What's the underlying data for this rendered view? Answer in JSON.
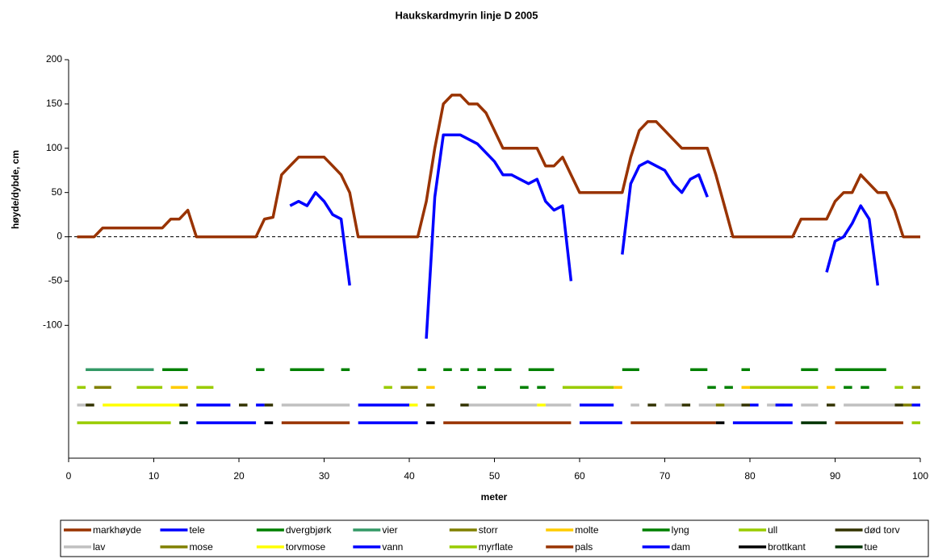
{
  "chart_data": {
    "type": "line",
    "title": "Haukskardmyrin linje D 2005",
    "x_label": "meter",
    "y_label": "høyde/dybde, cm",
    "xlim": [
      0,
      100
    ],
    "xticks": [
      0,
      10,
      20,
      30,
      40,
      50,
      60,
      70,
      80,
      90,
      100
    ],
    "ylim": [
      -250,
      200
    ],
    "yticks": [
      -100,
      -50,
      0,
      50,
      100,
      150,
      200
    ],
    "hline": 0,
    "x": [
      1,
      2,
      3,
      4,
      5,
      6,
      7,
      8,
      9,
      10,
      11,
      12,
      13,
      14,
      15,
      16,
      17,
      18,
      19,
      20,
      21,
      22,
      23,
      24,
      25,
      26,
      27,
      28,
      29,
      30,
      31,
      32,
      33,
      34,
      35,
      36,
      37,
      38,
      39,
      40,
      41,
      42,
      43,
      44,
      45,
      46,
      47,
      48,
      49,
      50,
      51,
      52,
      53,
      54,
      55,
      56,
      57,
      58,
      59,
      60,
      61,
      62,
      63,
      64,
      65,
      66,
      67,
      68,
      69,
      70,
      71,
      72,
      73,
      74,
      75,
      76,
      77,
      78,
      79,
      80,
      81,
      82,
      83,
      84,
      85,
      86,
      87,
      88,
      89,
      90,
      91,
      92,
      93,
      94,
      95,
      96,
      97,
      98,
      99,
      100
    ],
    "series": [
      {
        "name": "markhøyde",
        "color": "#993300",
        "values": [
          0,
          0,
          0,
          10,
          10,
          10,
          10,
          10,
          10,
          10,
          10,
          20,
          20,
          30,
          0,
          0,
          0,
          0,
          0,
          0,
          0,
          0,
          20,
          22,
          70,
          80,
          90,
          90,
          90,
          90,
          80,
          70,
          50,
          0,
          0,
          0,
          0,
          0,
          0,
          0,
          0,
          40,
          100,
          150,
          160,
          160,
          150,
          150,
          140,
          120,
          100,
          100,
          100,
          100,
          100,
          80,
          80,
          90,
          70,
          50,
          50,
          50,
          50,
          50,
          50,
          90,
          120,
          130,
          130,
          120,
          110,
          100,
          100,
          100,
          100,
          70,
          35,
          0,
          0,
          0,
          0,
          0,
          0,
          0,
          0,
          20,
          20,
          20,
          20,
          40,
          50,
          50,
          70,
          60,
          50,
          50,
          30,
          0,
          0,
          0
        ]
      },
      {
        "name": "tele",
        "color": "#0000FF",
        "values": [
          null,
          null,
          null,
          null,
          null,
          null,
          null,
          null,
          null,
          null,
          null,
          null,
          null,
          null,
          null,
          null,
          null,
          null,
          null,
          null,
          null,
          null,
          null,
          null,
          null,
          35,
          40,
          35,
          50,
          40,
          25,
          20,
          -55,
          null,
          null,
          null,
          null,
          null,
          null,
          null,
          null,
          -115,
          45,
          115,
          115,
          115,
          110,
          105,
          95,
          85,
          70,
          70,
          65,
          60,
          65,
          40,
          30,
          35,
          -50,
          null,
          null,
          null,
          null,
          null,
          -20,
          60,
          80,
          85,
          80,
          75,
          60,
          50,
          65,
          70,
          45,
          null,
          null,
          null,
          null,
          null,
          null,
          null,
          null,
          null,
          null,
          null,
          null,
          null,
          -40,
          -5,
          0,
          15,
          35,
          20,
          -55,
          null,
          null,
          null,
          null,
          null
        ]
      },
      {
        "name": "dvergbjørk",
        "color": "#008000",
        "x": [
          11,
          14,
          null,
          22,
          23,
          null,
          26,
          30,
          null,
          32,
          33,
          null,
          41,
          42,
          null,
          44,
          45,
          null,
          46,
          47,
          null,
          48,
          49,
          null,
          50,
          52,
          null,
          54,
          57,
          null,
          65,
          67,
          null,
          73,
          75,
          null,
          79,
          80,
          null,
          86,
          88,
          null,
          90,
          96
        ],
        "values": [
          -150,
          -150,
          null,
          -150,
          -150,
          null,
          -150,
          -150,
          null,
          -150,
          -150,
          null,
          -150,
          -150,
          null,
          -150,
          -150,
          null,
          -150,
          -150,
          null,
          -150,
          -150,
          null,
          -150,
          -150,
          null,
          -150,
          -150,
          null,
          -150,
          -150,
          null,
          -150,
          -150,
          null,
          -150,
          -150,
          null,
          -150,
          -150,
          null,
          -150,
          -150
        ]
      },
      {
        "name": "vier",
        "color": "#339966",
        "x": [
          2,
          10
        ],
        "values": [
          -150,
          -150
        ]
      },
      {
        "name": "storr",
        "color": "#808000",
        "x": [
          3,
          5,
          null,
          39,
          41,
          null,
          99,
          100
        ],
        "values": [
          -170,
          -170,
          null,
          -170,
          -170,
          null,
          -170,
          -170
        ]
      },
      {
        "name": "molte",
        "color": "#FFCC00",
        "x": [
          12,
          14,
          null,
          42,
          43,
          null,
          64,
          65,
          null,
          79,
          80,
          null,
          89,
          90
        ],
        "values": [
          -170,
          -170,
          null,
          -170,
          -170,
          null,
          -170,
          -170,
          null,
          -170,
          -170,
          null,
          -170,
          -170
        ]
      },
      {
        "name": "lyng",
        "color": "#008000",
        "x": [
          48,
          49,
          null,
          53,
          54,
          null,
          55,
          56,
          null,
          75,
          76,
          null,
          77,
          78,
          null,
          91,
          92,
          null,
          93,
          94
        ],
        "values": [
          -170,
          -170,
          null,
          -170,
          -170,
          null,
          -170,
          -170,
          null,
          -170,
          -170,
          null,
          -170,
          -170,
          null,
          -170,
          -170,
          null,
          -170,
          -170
        ]
      },
      {
        "name": "ull",
        "color": "#99CC00",
        "x": [
          1,
          2,
          null,
          8,
          11,
          null,
          15,
          17,
          null,
          37,
          38,
          null,
          58,
          64,
          null,
          80,
          88,
          null,
          97,
          98
        ],
        "values": [
          -170,
          -170,
          null,
          -170,
          -170,
          null,
          -170,
          -170,
          null,
          -170,
          -170,
          null,
          -170,
          -170,
          null,
          -170,
          -170,
          null,
          -170,
          -170
        ]
      },
      {
        "name": "død torv",
        "color": "#333300",
        "x": [
          2,
          3,
          null,
          13,
          14,
          null,
          20,
          21,
          null,
          23,
          24,
          null,
          42,
          43,
          null,
          46,
          47,
          null,
          68,
          69,
          null,
          72,
          73,
          null,
          79,
          80,
          null,
          89,
          90,
          null,
          97,
          98
        ],
        "values": [
          -190,
          -190,
          null,
          -190,
          -190,
          null,
          -190,
          -190,
          null,
          -190,
          -190,
          null,
          -190,
          -190,
          null,
          -190,
          -190,
          null,
          -190,
          -190,
          null,
          -190,
          -190,
          null,
          -190,
          -190,
          null,
          -190,
          -190,
          null,
          -190,
          -190
        ]
      },
      {
        "name": "lav",
        "color": "#C0C0C0",
        "x": [
          1,
          2,
          null,
          25,
          33,
          null,
          47,
          55,
          null,
          56,
          59,
          null,
          66,
          67,
          null,
          70,
          72,
          null,
          74,
          76,
          null,
          77,
          79,
          null,
          82,
          84,
          null,
          86,
          88,
          null,
          91,
          97
        ],
        "values": [
          -190,
          -190,
          null,
          -190,
          -190,
          null,
          -190,
          -190,
          null,
          -190,
          -190,
          null,
          -190,
          -190,
          null,
          -190,
          -190,
          null,
          -190,
          -190,
          null,
          -190,
          -190,
          null,
          -190,
          -190,
          null,
          -190,
          -190,
          null,
          -190,
          -190
        ]
      },
      {
        "name": "mose",
        "color": "#808000",
        "x": [
          76,
          77,
          null,
          98,
          99
        ],
        "values": [
          -190,
          -190,
          null,
          -190,
          -190
        ]
      },
      {
        "name": "torvmose",
        "color": "#FFFF00",
        "x": [
          4,
          13,
          null,
          40,
          41,
          null,
          55,
          56
        ],
        "values": [
          -190,
          -190,
          null,
          -190,
          -190,
          null,
          -190,
          -190
        ]
      },
      {
        "name": "vann",
        "color": "#0000FF",
        "x": [
          15,
          19,
          null,
          22,
          23,
          null,
          34,
          40,
          null,
          60,
          64,
          null,
          80,
          81,
          null,
          83,
          85,
          null,
          99,
          100
        ],
        "values": [
          -190,
          -190,
          null,
          -190,
          -190,
          null,
          -190,
          -190,
          null,
          -190,
          -190,
          null,
          -190,
          -190,
          null,
          -190,
          -190,
          null,
          -190,
          -190
        ]
      },
      {
        "name": "myrflate",
        "color": "#99CC00",
        "x": [
          1,
          12,
          null,
          99,
          100
        ],
        "values": [
          -210,
          -210,
          null,
          -210,
          -210
        ]
      },
      {
        "name": "pals",
        "color": "#993300",
        "x": [
          25,
          33,
          null,
          44,
          59,
          null,
          66,
          76,
          null,
          90,
          98
        ],
        "values": [
          -210,
          -210,
          null,
          -210,
          -210,
          null,
          -210,
          -210,
          null,
          -210,
          -210
        ]
      },
      {
        "name": "dam",
        "color": "#0000FF",
        "x": [
          15,
          22,
          null,
          34,
          41,
          null,
          60,
          65,
          null,
          78,
          85
        ],
        "values": [
          -210,
          -210,
          null,
          -210,
          -210,
          null,
          -210,
          -210,
          null,
          -210,
          -210
        ]
      },
      {
        "name": "brottkant",
        "color": "#000000",
        "x": [
          23,
          24,
          null,
          42,
          43,
          null,
          76,
          77
        ],
        "values": [
          -210,
          -210,
          null,
          -210,
          -210,
          null,
          -210,
          -210
        ]
      },
      {
        "name": "tue",
        "color": "#003300",
        "x": [
          13,
          14,
          null,
          86,
          89
        ],
        "values": [
          -210,
          -210,
          null,
          -210,
          -210
        ]
      }
    ]
  }
}
